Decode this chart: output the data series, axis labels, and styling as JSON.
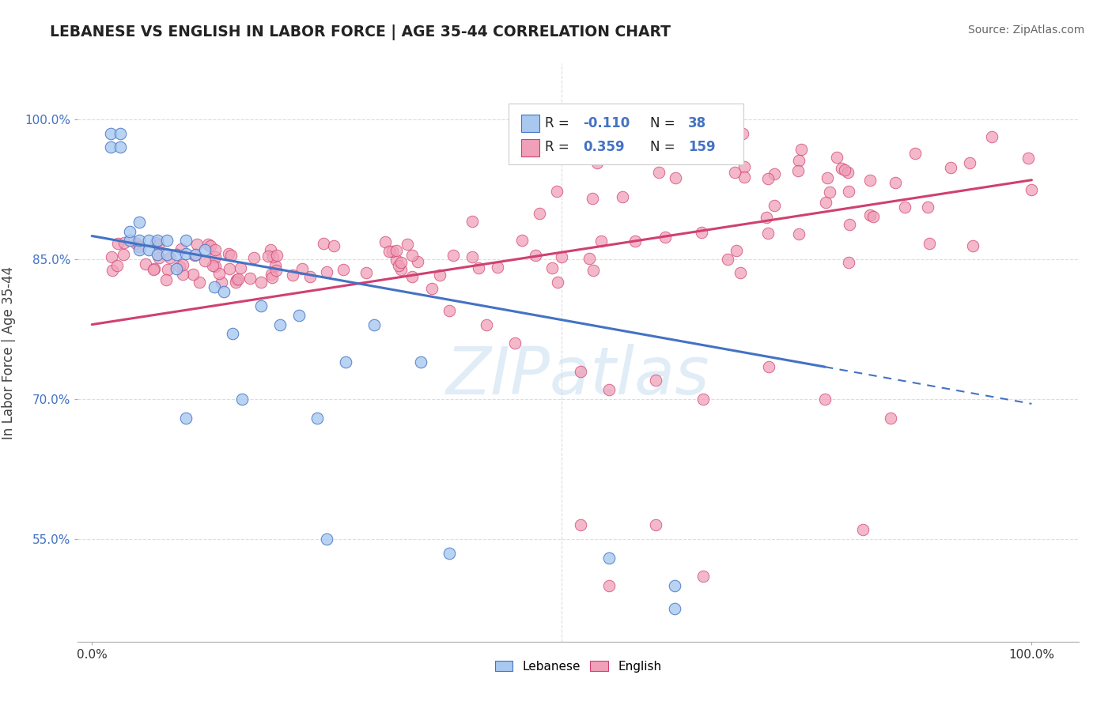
{
  "title": "LEBANESE VS ENGLISH IN LABOR FORCE | AGE 35-44 CORRELATION CHART",
  "source": "Source: ZipAtlas.com",
  "ylabel": "In Labor Force | Age 35-44",
  "r_lebanese": -0.11,
  "n_lebanese": 38,
  "r_english": 0.359,
  "n_english": 159,
  "color_lebanese": "#a8c8f0",
  "color_english": "#f0a0b8",
  "line_color_lebanese": "#4472c4",
  "line_color_english": "#d04070",
  "watermark_color": "#c8ddf0",
  "ytick_color": "#4472c4",
  "title_color": "#222222",
  "source_color": "#666666",
  "axis_color": "#aaaaaa",
  "grid_color": "#dddddd",
  "leb_trend_start_x": 0.0,
  "leb_trend_start_y": 0.875,
  "leb_trend_end_x": 1.0,
  "leb_trend_end_y": 0.695,
  "eng_trend_start_x": 0.0,
  "eng_trend_start_y": 0.78,
  "eng_trend_end_x": 1.0,
  "eng_trend_end_y": 0.935,
  "leb_dash_from": 0.78,
  "xlim_lo": -0.015,
  "xlim_hi": 1.05,
  "ylim_lo": 0.44,
  "ylim_hi": 1.06,
  "yticks": [
    0.55,
    0.7,
    0.85,
    1.0
  ],
  "ytick_labels": [
    "55.0%",
    "70.0%",
    "85.0%",
    "100.0%"
  ]
}
